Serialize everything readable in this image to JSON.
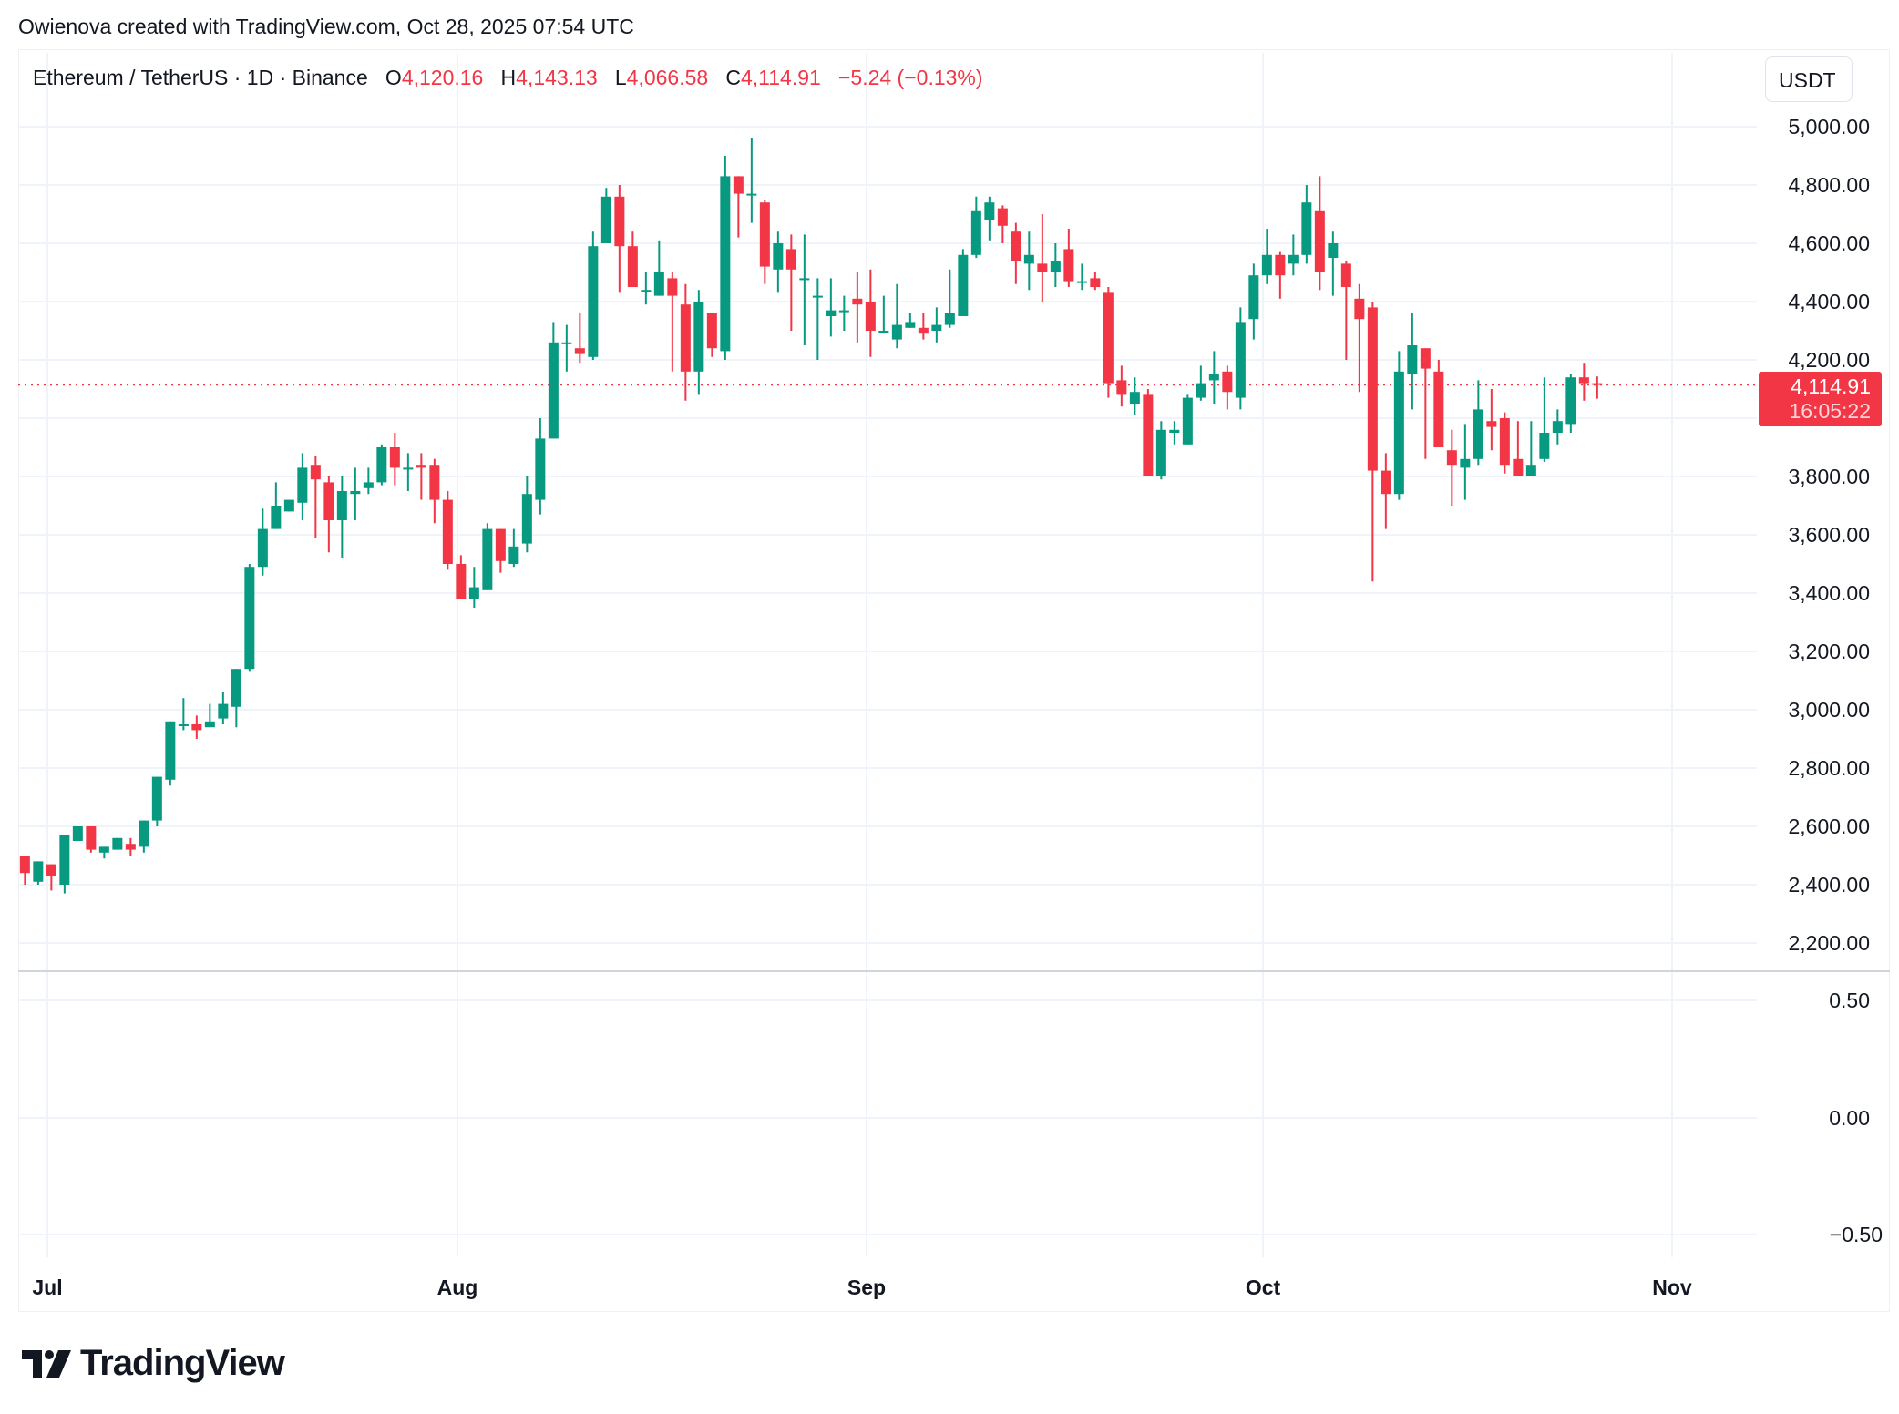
{
  "credit": "Owienova created with TradingView.com, Oct 28, 2025 07:54 UTC",
  "legend": {
    "symbol": "Ethereum / TetherUS · 1D · Binance",
    "o_label": "O",
    "o_value": "4,120.16",
    "h_label": "H",
    "h_value": "4,143.13",
    "l_label": "L",
    "l_value": "4,066.58",
    "c_label": "C",
    "c_value": "4,114.91",
    "change": "−5.24 (−0.13%)"
  },
  "currency_button": "USDT",
  "last_price": {
    "value": "4,114.91",
    "countdown": "16:05:22"
  },
  "brand": "TradingView",
  "colors": {
    "up": "#089981",
    "down": "#f23645",
    "grid": "#f0f3fa",
    "text": "#131722"
  },
  "chart_data": {
    "type": "candlestick",
    "title": "Ethereum / TetherUS · 1D · Binance",
    "xlabel": "",
    "ylabel": "USDT",
    "price_axis_ticks": [
      "5,000.00",
      "4,800.00",
      "4,600.00",
      "4,400.00",
      "4,200.00",
      "3,800.00",
      "3,600.00",
      "3,400.00",
      "3,200.00",
      "3,000.00",
      "2,800.00",
      "2,600.00",
      "2,400.00",
      "2,200.00"
    ],
    "lower_pane_ticks": [
      "0.50",
      "0.00",
      "−0.50"
    ],
    "date_ticks": [
      "Jul",
      "Aug",
      "Sep",
      "Oct",
      "Nov"
    ],
    "ylim": [
      2130,
      5130
    ],
    "grid": true,
    "last_price": 4114.91,
    "candles": [
      [
        2500,
        2440,
        2400,
        2410
      ],
      [
        2410,
        2480,
        2400,
        2470
      ],
      [
        2470,
        2430,
        2380,
        2400
      ],
      [
        2400,
        2570,
        2370,
        2570
      ],
      [
        2550,
        2600,
        2550,
        2600
      ],
      [
        2600,
        2520,
        2510,
        2510
      ],
      [
        2510,
        2530,
        2490,
        2530
      ],
      [
        2520,
        2560,
        2520,
        2560
      ],
      [
        2540,
        2520,
        2500,
        2560
      ],
      [
        2530,
        2620,
        2510,
        2620
      ],
      [
        2620,
        2770,
        2600,
        2770
      ],
      [
        2760,
        2960,
        2740,
        2960
      ],
      [
        2950,
        2950,
        2930,
        3040
      ],
      [
        2950,
        2930,
        2900,
        2980
      ],
      [
        2940,
        2960,
        2940,
        3020
      ],
      [
        2970,
        3020,
        2950,
        3060
      ],
      [
        3010,
        3140,
        2940,
        3140
      ],
      [
        3140,
        3490,
        3130,
        3500
      ],
      [
        3490,
        3620,
        3460,
        3690
      ],
      [
        3620,
        3700,
        3640,
        3780
      ],
      [
        3680,
        3720,
        3730,
        3710
      ],
      [
        3710,
        3830,
        3650,
        3880
      ],
      [
        3840,
        3790,
        3590,
        3870
      ],
      [
        3780,
        3650,
        3540,
        3800
      ],
      [
        3650,
        3750,
        3520,
        3800
      ],
      [
        3740,
        3750,
        3650,
        3830
      ],
      [
        3760,
        3780,
        3740,
        3830
      ],
      [
        3780,
        3900,
        3770,
        3910
      ],
      [
        3900,
        3830,
        3770,
        3950
      ],
      [
        3830,
        3830,
        3750,
        3880
      ],
      [
        3840,
        3830,
        3720,
        3880
      ],
      [
        3840,
        3720,
        3640,
        3860
      ],
      [
        3720,
        3500,
        3480,
        3750
      ],
      [
        3500,
        3380,
        3390,
        3530
      ],
      [
        3380,
        3420,
        3350,
        3490
      ],
      [
        3410,
        3620,
        3420,
        3640
      ],
      [
        3620,
        3510,
        3470,
        3620
      ],
      [
        3500,
        3560,
        3490,
        3620
      ],
      [
        3570,
        3740,
        3540,
        3800
      ],
      [
        3720,
        3930,
        3670,
        4000
      ],
      [
        3930,
        4260,
        3970,
        4330
      ],
      [
        4260,
        4260,
        4160,
        4320
      ],
      [
        4240,
        4220,
        4190,
        4360
      ],
      [
        4210,
        4590,
        4200,
        4640
      ],
      [
        4600,
        4760,
        4740,
        4790
      ],
      [
        4760,
        4590,
        4430,
        4800
      ],
      [
        4590,
        4450,
        4450,
        4640
      ],
      [
        4440,
        4440,
        4390,
        4500
      ],
      [
        4420,
        4500,
        4430,
        4610
      ],
      [
        4480,
        4420,
        4160,
        4500
      ],
      [
        4390,
        4160,
        4060,
        4460
      ],
      [
        4160,
        4400,
        4080,
        4440
      ],
      [
        4360,
        4240,
        4210,
        4340
      ],
      [
        4230,
        4830,
        4200,
        4900
      ],
      [
        4830,
        4770,
        4620,
        4830
      ],
      [
        4770,
        4770,
        4670,
        4960
      ],
      [
        4740,
        4520,
        4460,
        4750
      ],
      [
        4510,
        4600,
        4430,
        4640
      ],
      [
        4580,
        4510,
        4300,
        4630
      ],
      [
        4480,
        4480,
        4250,
        4630
      ],
      [
        4420,
        4420,
        4200,
        4480
      ],
      [
        4350,
        4370,
        4280,
        4480
      ],
      [
        4370,
        4370,
        4300,
        4420
      ],
      [
        4410,
        4390,
        4260,
        4500
      ],
      [
        4400,
        4300,
        4210,
        4510
      ],
      [
        4300,
        4300,
        4290,
        4420
      ],
      [
        4270,
        4320,
        4240,
        4460
      ],
      [
        4310,
        4330,
        4310,
        4360
      ],
      [
        4310,
        4290,
        4270,
        4360
      ],
      [
        4300,
        4320,
        4260,
        4380
      ],
      [
        4320,
        4360,
        4310,
        4510
      ],
      [
        4350,
        4560,
        4350,
        4580
      ],
      [
        4560,
        4710,
        4550,
        4760
      ],
      [
        4680,
        4740,
        4610,
        4760
      ],
      [
        4720,
        4660,
        4600,
        4730
      ],
      [
        4640,
        4540,
        4460,
        4670
      ],
      [
        4530,
        4560,
        4440,
        4640
      ],
      [
        4530,
        4500,
        4400,
        4700
      ],
      [
        4500,
        4540,
        4450,
        4600
      ],
      [
        4580,
        4470,
        4450,
        4650
      ],
      [
        4470,
        4470,
        4440,
        4530
      ],
      [
        4480,
        4450,
        4440,
        4500
      ],
      [
        4430,
        4120,
        4070,
        4450
      ],
      [
        4130,
        4080,
        4040,
        4180
      ],
      [
        4050,
        4090,
        4010,
        4140
      ],
      [
        4080,
        3800,
        3810,
        4100
      ],
      [
        3800,
        3960,
        3790,
        3990
      ],
      [
        3950,
        3960,
        3910,
        3990
      ],
      [
        3910,
        4070,
        3930,
        4080
      ],
      [
        4070,
        4120,
        4060,
        4180
      ],
      [
        4130,
        4150,
        4050,
        4230
      ],
      [
        4160,
        4090,
        4030,
        4180
      ],
      [
        4070,
        4330,
        4030,
        4380
      ],
      [
        4340,
        4490,
        4270,
        4530
      ],
      [
        4490,
        4560,
        4460,
        4650
      ],
      [
        4560,
        4490,
        4410,
        4570
      ],
      [
        4530,
        4560,
        4490,
        4630
      ],
      [
        4560,
        4740,
        4530,
        4800
      ],
      [
        4710,
        4500,
        4440,
        4830
      ],
      [
        4550,
        4600,
        4420,
        4640
      ],
      [
        4530,
        4450,
        4200,
        4540
      ],
      [
        4410,
        4340,
        4090,
        4460
      ],
      [
        4380,
        3820,
        3440,
        4400
      ],
      [
        3820,
        3740,
        3620,
        3880
      ],
      [
        3740,
        4160,
        3720,
        4230
      ],
      [
        4150,
        4250,
        4030,
        4360
      ],
      [
        4240,
        4170,
        3860,
        4230
      ],
      [
        4160,
        3900,
        3920,
        4200
      ],
      [
        3890,
        3840,
        3700,
        3960
      ],
      [
        3830,
        3860,
        3720,
        3980
      ],
      [
        3860,
        4030,
        3840,
        4130
      ],
      [
        3990,
        3970,
        3890,
        4100
      ],
      [
        4000,
        3840,
        3810,
        4020
      ],
      [
        3860,
        3800,
        3800,
        3990
      ],
      [
        3800,
        3840,
        3860,
        3990
      ],
      [
        3860,
        3950,
        3850,
        4140
      ],
      [
        3950,
        3990,
        3910,
        4030
      ],
      [
        3980,
        4140,
        3950,
        4150
      ],
      [
        4140,
        4120,
        4060,
        4190
      ],
      [
        4120,
        4114.91,
        4066.58,
        4143.13
      ]
    ]
  }
}
